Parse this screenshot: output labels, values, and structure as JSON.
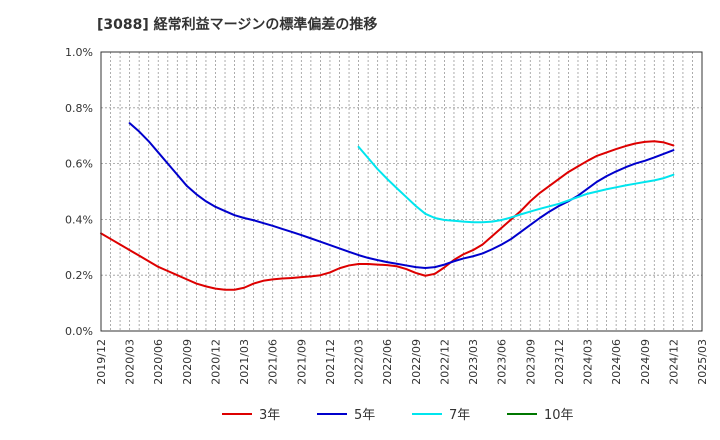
{
  "title": "[3088]  経常利益マージンの標準偏差の推移",
  "chart_data": {
    "type": "line",
    "title": "[3088]  経常利益マージンの標準偏差の推移",
    "xlabel": "",
    "ylabel": "",
    "x_ticks": [
      "2019/12",
      "2020/03",
      "2020/06",
      "2020/09",
      "2020/12",
      "2021/03",
      "2021/06",
      "2021/09",
      "2021/12",
      "2022/03",
      "2022/06",
      "2022/09",
      "2022/12",
      "2023/03",
      "2023/06",
      "2023/09",
      "2023/12",
      "2024/03",
      "2024/06",
      "2024/09",
      "2024/12",
      "2025/03"
    ],
    "y_ticks": [
      "0.0%",
      "0.2%",
      "0.4%",
      "0.6%",
      "0.8%",
      "1.0%"
    ],
    "ylim": [
      0,
      1.0
    ],
    "y_unit": "%",
    "grid": true,
    "legend_position": "bottom",
    "series": [
      {
        "name": "3年",
        "color": "#dd0000",
        "points": [
          [
            "2019/12",
            0.35
          ],
          [
            "2020/01",
            0.33
          ],
          [
            "2020/02",
            0.31
          ],
          [
            "2020/03",
            0.29
          ],
          [
            "2020/04",
            0.27
          ],
          [
            "2020/05",
            0.25
          ],
          [
            "2020/06",
            0.23
          ],
          [
            "2020/07",
            0.215
          ],
          [
            "2020/08",
            0.2
          ],
          [
            "2020/09",
            0.185
          ],
          [
            "2020/10",
            0.17
          ],
          [
            "2020/11",
            0.16
          ],
          [
            "2020/12",
            0.152
          ],
          [
            "2021/01",
            0.148
          ],
          [
            "2021/02",
            0.148
          ],
          [
            "2021/03",
            0.155
          ],
          [
            "2021/04",
            0.17
          ],
          [
            "2021/05",
            0.18
          ],
          [
            "2021/06",
            0.185
          ],
          [
            "2021/07",
            0.188
          ],
          [
            "2021/08",
            0.19
          ],
          [
            "2021/09",
            0.193
          ],
          [
            "2021/10",
            0.196
          ],
          [
            "2021/11",
            0.2
          ],
          [
            "2021/12",
            0.21
          ],
          [
            "2022/01",
            0.225
          ],
          [
            "2022/02",
            0.235
          ],
          [
            "2022/03",
            0.24
          ],
          [
            "2022/04",
            0.24
          ],
          [
            "2022/05",
            0.238
          ],
          [
            "2022/06",
            0.236
          ],
          [
            "2022/07",
            0.232
          ],
          [
            "2022/08",
            0.222
          ],
          [
            "2022/09",
            0.208
          ],
          [
            "2022/10",
            0.198
          ],
          [
            "2022/11",
            0.205
          ],
          [
            "2022/12",
            0.228
          ],
          [
            "2023/01",
            0.255
          ],
          [
            "2023/02",
            0.275
          ],
          [
            "2023/03",
            0.29
          ],
          [
            "2023/04",
            0.31
          ],
          [
            "2023/05",
            0.34
          ],
          [
            "2023/06",
            0.37
          ],
          [
            "2023/07",
            0.4
          ],
          [
            "2023/08",
            0.43
          ],
          [
            "2023/09",
            0.465
          ],
          [
            "2023/10",
            0.495
          ],
          [
            "2023/11",
            0.52
          ],
          [
            "2023/12",
            0.545
          ],
          [
            "2024/01",
            0.57
          ],
          [
            "2024/02",
            0.59
          ],
          [
            "2024/03",
            0.61
          ],
          [
            "2024/04",
            0.628
          ],
          [
            "2024/05",
            0.64
          ],
          [
            "2024/06",
            0.652
          ],
          [
            "2024/07",
            0.663
          ],
          [
            "2024/08",
            0.672
          ],
          [
            "2024/09",
            0.678
          ],
          [
            "2024/10",
            0.68
          ],
          [
            "2024/11",
            0.676
          ],
          [
            "2024/12",
            0.665
          ]
        ]
      },
      {
        "name": "5年",
        "color": "#0000cc",
        "points": [
          [
            "2020/03",
            0.745
          ],
          [
            "2020/04",
            0.715
          ],
          [
            "2020/05",
            0.68
          ],
          [
            "2020/06",
            0.64
          ],
          [
            "2020/07",
            0.6
          ],
          [
            "2020/08",
            0.56
          ],
          [
            "2020/09",
            0.52
          ],
          [
            "2020/10",
            0.49
          ],
          [
            "2020/11",
            0.465
          ],
          [
            "2020/12",
            0.445
          ],
          [
            "2021/01",
            0.43
          ],
          [
            "2021/02",
            0.415
          ],
          [
            "2021/03",
            0.405
          ],
          [
            "2021/04",
            0.397
          ],
          [
            "2021/05",
            0.387
          ],
          [
            "2021/06",
            0.377
          ],
          [
            "2021/07",
            0.366
          ],
          [
            "2021/08",
            0.355
          ],
          [
            "2021/09",
            0.344
          ],
          [
            "2021/10",
            0.332
          ],
          [
            "2021/11",
            0.32
          ],
          [
            "2021/12",
            0.308
          ],
          [
            "2022/01",
            0.296
          ],
          [
            "2022/02",
            0.284
          ],
          [
            "2022/03",
            0.272
          ],
          [
            "2022/04",
            0.262
          ],
          [
            "2022/05",
            0.254
          ],
          [
            "2022/06",
            0.247
          ],
          [
            "2022/07",
            0.241
          ],
          [
            "2022/08",
            0.235
          ],
          [
            "2022/09",
            0.229
          ],
          [
            "2022/10",
            0.226
          ],
          [
            "2022/11",
            0.229
          ],
          [
            "2022/12",
            0.238
          ],
          [
            "2023/01",
            0.25
          ],
          [
            "2023/02",
            0.26
          ],
          [
            "2023/03",
            0.268
          ],
          [
            "2023/04",
            0.278
          ],
          [
            "2023/05",
            0.293
          ],
          [
            "2023/06",
            0.31
          ],
          [
            "2023/07",
            0.33
          ],
          [
            "2023/08",
            0.355
          ],
          [
            "2023/09",
            0.38
          ],
          [
            "2023/10",
            0.405
          ],
          [
            "2023/11",
            0.428
          ],
          [
            "2023/12",
            0.448
          ],
          [
            "2024/01",
            0.465
          ],
          [
            "2024/02",
            0.485
          ],
          [
            "2024/03",
            0.51
          ],
          [
            "2024/04",
            0.535
          ],
          [
            "2024/05",
            0.555
          ],
          [
            "2024/06",
            0.572
          ],
          [
            "2024/07",
            0.587
          ],
          [
            "2024/08",
            0.6
          ],
          [
            "2024/09",
            0.61
          ],
          [
            "2024/10",
            0.622
          ],
          [
            "2024/11",
            0.635
          ],
          [
            "2024/12",
            0.648
          ]
        ]
      },
      {
        "name": "7年",
        "color": "#00e5ee",
        "points": [
          [
            "2022/03",
            0.66
          ],
          [
            "2022/04",
            0.62
          ],
          [
            "2022/05",
            0.58
          ],
          [
            "2022/06",
            0.545
          ],
          [
            "2022/07",
            0.512
          ],
          [
            "2022/08",
            0.48
          ],
          [
            "2022/09",
            0.448
          ],
          [
            "2022/10",
            0.42
          ],
          [
            "2022/11",
            0.405
          ],
          [
            "2022/12",
            0.398
          ],
          [
            "2023/01",
            0.395
          ],
          [
            "2023/02",
            0.392
          ],
          [
            "2023/03",
            0.39
          ],
          [
            "2023/04",
            0.39
          ],
          [
            "2023/05",
            0.392
          ],
          [
            "2023/06",
            0.398
          ],
          [
            "2023/07",
            0.407
          ],
          [
            "2023/08",
            0.418
          ],
          [
            "2023/09",
            0.428
          ],
          [
            "2023/10",
            0.438
          ],
          [
            "2023/11",
            0.447
          ],
          [
            "2023/12",
            0.456
          ],
          [
            "2024/01",
            0.468
          ],
          [
            "2024/02",
            0.48
          ],
          [
            "2024/03",
            0.492
          ],
          [
            "2024/04",
            0.5
          ],
          [
            "2024/05",
            0.508
          ],
          [
            "2024/06",
            0.515
          ],
          [
            "2024/07",
            0.522
          ],
          [
            "2024/08",
            0.528
          ],
          [
            "2024/09",
            0.534
          ],
          [
            "2024/10",
            0.54
          ],
          [
            "2024/11",
            0.548
          ],
          [
            "2024/12",
            0.56
          ]
        ]
      },
      {
        "name": "10年",
        "color": "#007700",
        "points": []
      }
    ]
  }
}
